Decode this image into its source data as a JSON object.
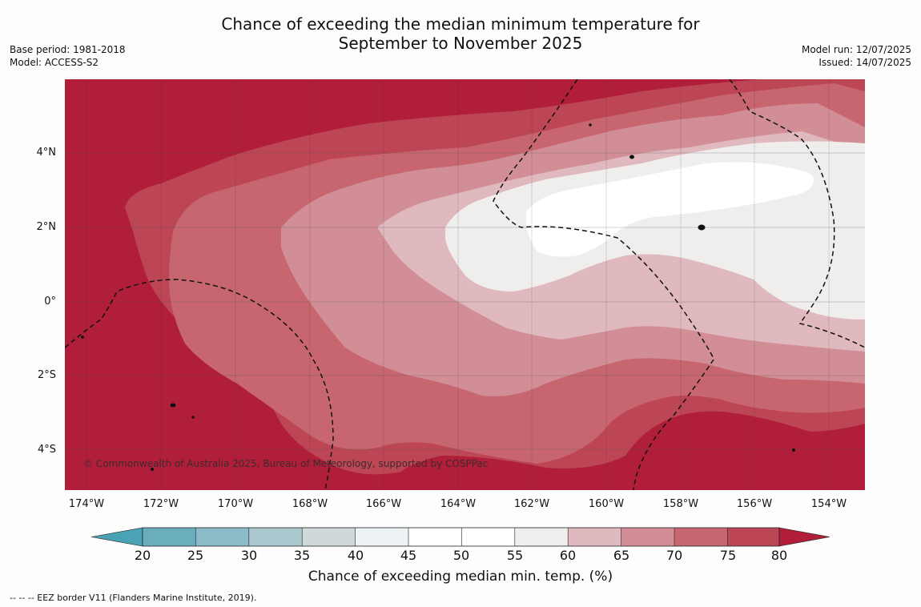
{
  "title": "Chance of exceeding the median minimum temperature for\nSeptember to November 2025",
  "meta_left": [
    "Base period: 1981-2018",
    "Model: ACCESS-S2"
  ],
  "meta_right": [
    "Model run: 12/07/2025",
    "Issued: 14/07/2025"
  ],
  "copyright": "© Commonwealth of Australia 2025, Bureau of Meteorology, supported by COSPPac",
  "lat_labels": [
    {
      "label": "4°N",
      "value": 4
    },
    {
      "label": "2°N",
      "value": 2
    },
    {
      "label": "0°",
      "value": 0
    },
    {
      "label": "2°S",
      "value": -2
    },
    {
      "label": "4°S",
      "value": -4
    }
  ],
  "lon_labels": [
    {
      "label": "174°W",
      "value": -174
    },
    {
      "label": "172°W",
      "value": -172
    },
    {
      "label": "170°W",
      "value": -170
    },
    {
      "label": "168°W",
      "value": -168
    },
    {
      "label": "166°W",
      "value": -166
    },
    {
      "label": "164°W",
      "value": -164
    },
    {
      "label": "162°W",
      "value": -162
    },
    {
      "label": "160°W",
      "value": -160
    },
    {
      "label": "158°W",
      "value": -158
    },
    {
      "label": "156°W",
      "value": -156
    },
    {
      "label": "154°W",
      "value": -154
    }
  ],
  "colorbar": {
    "ticks": [
      "20",
      "25",
      "30",
      "35",
      "40",
      "45",
      "50",
      "55",
      "60",
      "65",
      "70",
      "75",
      "80"
    ],
    "colors": [
      "#6aaebd",
      "#8bbcc8",
      "#aac8cd",
      "#cfd9da",
      "#edf3f4",
      "#ffffff",
      "#ffffff",
      "#efeeed",
      "#e0b9be",
      "#d28e96",
      "#c8666f",
      "#bd4655"
    ],
    "under_color": "#4aa3b4",
    "over_color": "#b11e39",
    "label": "Chance of exceeding median min. temp. (%)"
  },
  "eez_note": "--  --  -- EEZ border V11 (Flanders Marine Institute, 2019)."
}
